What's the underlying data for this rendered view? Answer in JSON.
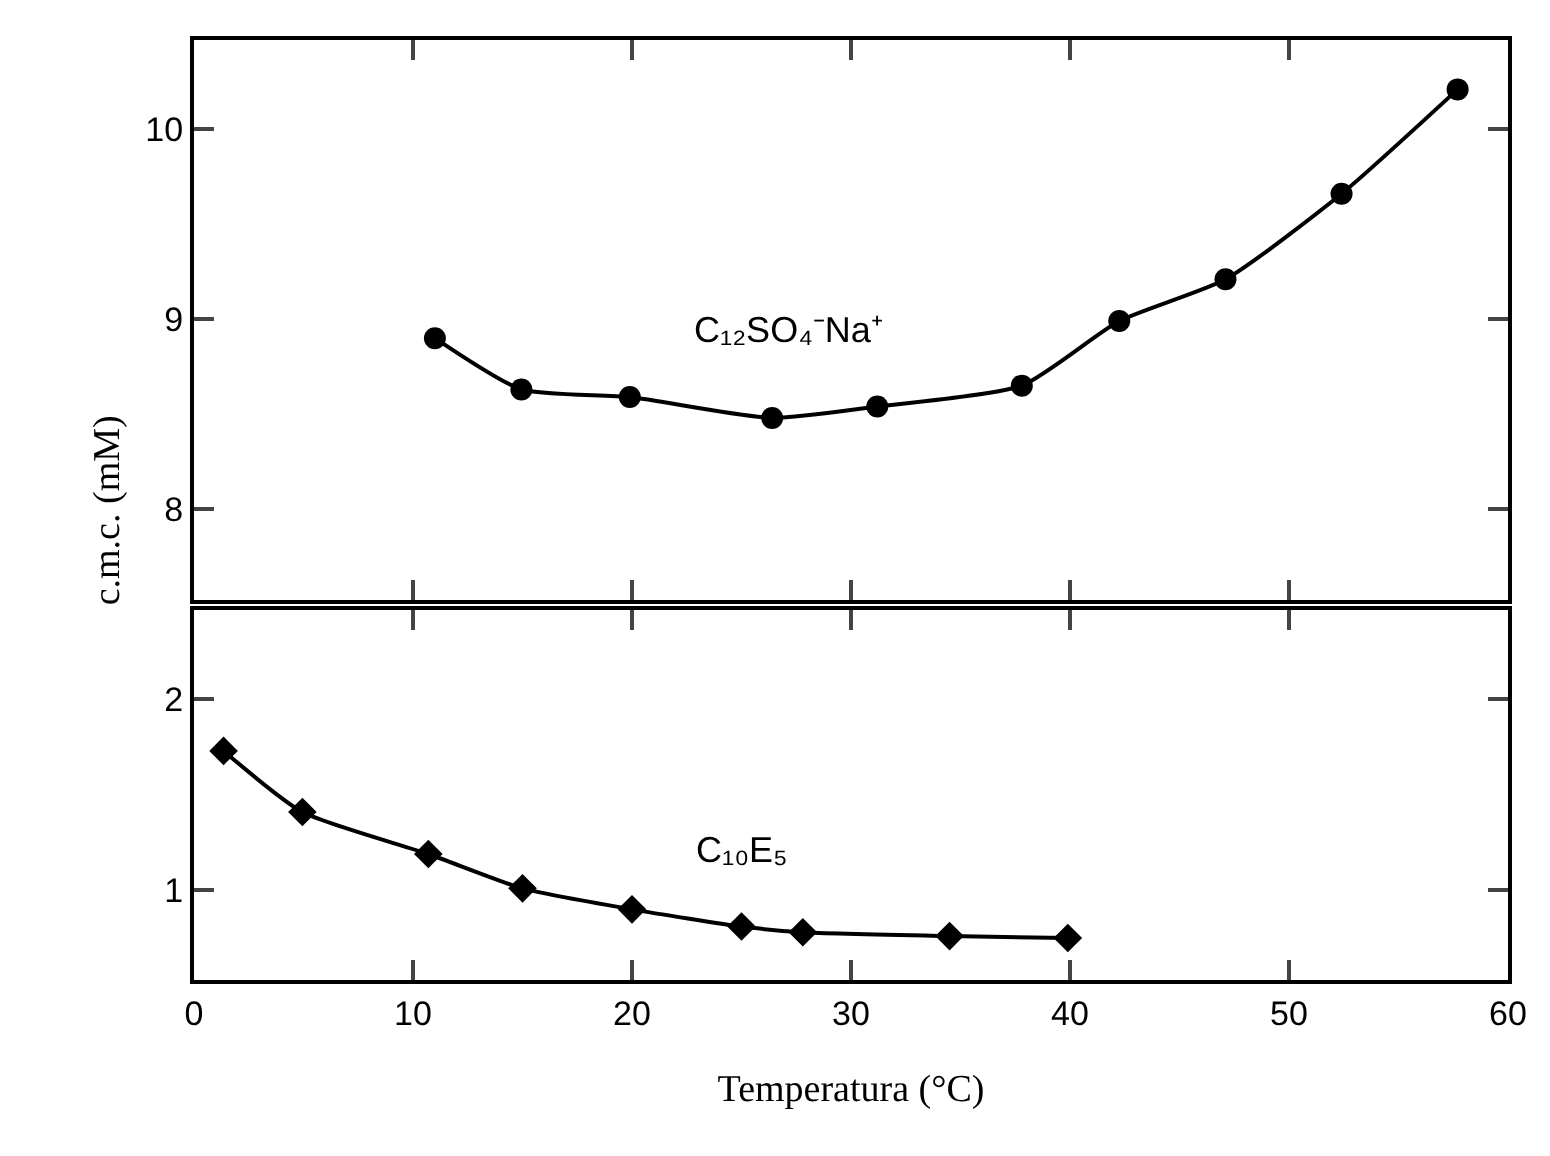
{
  "chart_data": [
    {
      "type": "line",
      "ylabel": "c.m.c. (mM)",
      "tick_labels": "y",
      "marker": "circle",
      "line_style": "solid",
      "xlim": [
        0,
        60
      ],
      "xticks": [
        0,
        10,
        20,
        30,
        40,
        50,
        60
      ],
      "ylim": [
        7.52,
        10.47
      ],
      "yticks": [
        8,
        9,
        10
      ],
      "series": [
        {
          "name": "C₁₂SO₄⁻Na⁺",
          "color": "#000000",
          "x": [
            11.0,
            14.95,
            19.9,
            26.4,
            31.2,
            37.8,
            42.25,
            47.1,
            52.4,
            57.7
          ],
          "values": [
            8.9,
            8.63,
            8.59,
            8.48,
            8.54,
            8.65,
            8.99,
            9.21,
            9.66,
            10.21
          ]
        }
      ]
    },
    {
      "type": "line",
      "xlabel": "Temperatura (°C)",
      "marker": "diamond",
      "line_style": "solid",
      "xlim": [
        0,
        60
      ],
      "xticks": [
        0,
        10,
        20,
        30,
        40,
        50,
        60
      ],
      "ylim": [
        0.53,
        2.47
      ],
      "yticks": [
        1,
        2
      ],
      "series": [
        {
          "name": "C₁₀E₅",
          "color": "#000000",
          "x": [
            1.35,
            4.95,
            10.7,
            15.0,
            20.0,
            25.0,
            27.8,
            34.5,
            39.9
          ],
          "values": [
            1.73,
            1.41,
            1.19,
            1.01,
            0.9,
            0.81,
            0.78,
            0.76,
            0.75
          ]
        }
      ]
    }
  ]
}
